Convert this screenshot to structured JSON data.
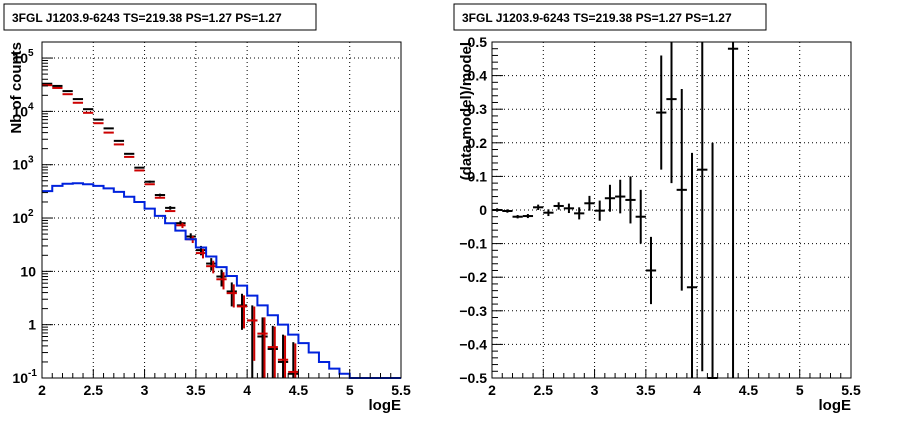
{
  "chart_data": [
    {
      "type": "step-errorbar",
      "title": "3FGL J1203.9-6243 TS=219.38 PS=1.27 PS=1.27",
      "xlabel": "logE",
      "ylabel": "Nb of counts",
      "xlim": [
        2,
        5.5
      ],
      "ylim": [
        0.1,
        200000
      ],
      "yscale": "log",
      "grid": true,
      "x_ticks": [
        "2",
        "2.5",
        "3",
        "3.5",
        "4",
        "4.5",
        "5",
        "5.5"
      ],
      "y_ticks": [
        {
          "value": 0.1,
          "label": "10",
          "exp": "-1"
        },
        {
          "value": 1,
          "label": "1",
          "exp": ""
        },
        {
          "value": 10,
          "label": "10",
          "exp": ""
        },
        {
          "value": 100,
          "label": "10",
          "exp": "2"
        },
        {
          "value": 1000,
          "label": "10",
          "exp": "3"
        },
        {
          "value": 10000,
          "label": "10",
          "exp": "4"
        },
        {
          "value": 100000,
          "label": "10",
          "exp": "5"
        }
      ],
      "bin_width": 0.1,
      "bin_centers": [
        2.05,
        2.15,
        2.25,
        2.35,
        2.45,
        2.55,
        2.65,
        2.75,
        2.85,
        2.95,
        3.05,
        3.15,
        3.25,
        3.35,
        3.45,
        3.55,
        3.65,
        3.75,
        3.85,
        3.95,
        4.05,
        4.15,
        4.25,
        4.35,
        4.45,
        4.55,
        4.65,
        4.75,
        4.85,
        4.95,
        5.05,
        5.15,
        5.25,
        5.35,
        5.45
      ],
      "series": [
        {
          "role": "data",
          "color": "#000000",
          "values": [
            33000,
            30000,
            24000,
            17000,
            11000,
            7000,
            4800,
            2800,
            1600,
            880,
            480,
            270,
            155,
            80,
            45,
            25,
            14,
            8,
            4.2,
            2.3,
            1.2,
            0.6,
            0.35,
            0.2,
            0.12
          ],
          "errors": [
            180,
            170,
            150,
            130,
            105,
            85,
            70,
            53,
            40,
            30,
            22,
            16,
            12,
            9,
            6.7,
            5,
            3.7,
            2.8,
            2.0,
            1.5,
            1.1,
            0.77,
            0.6,
            0.45,
            0.35
          ]
        },
        {
          "role": "model",
          "color": "#cc0000",
          "values": [
            31000,
            27500,
            21000,
            14500,
            9400,
            6000,
            4000,
            2400,
            1400,
            780,
            430,
            240,
            135,
            73,
            40,
            22,
            12.5,
            7.1,
            3.9,
            2.2,
            1.2,
            0.68,
            0.38,
            0.22,
            0.13
          ]
        },
        {
          "role": "source",
          "color": "#0022dd",
          "values": [
            320,
            400,
            440,
            450,
            430,
            400,
            360,
            310,
            250,
            200,
            150,
            110,
            80,
            58,
            40,
            28,
            19,
            12,
            8.2,
            5.4,
            3.5,
            2.3,
            1.5,
            1.0,
            0.65,
            0.45,
            0.3,
            0.2,
            0.15,
            0.12,
            0.1,
            0.1,
            0.1,
            0.1,
            0.1
          ]
        }
      ]
    },
    {
      "type": "errorbar",
      "title": "3FGL J1203.9-6243 TS=219.38 PS=1.27 PS=1.27",
      "xlabel": "logE",
      "ylabel": "(data-model)/model",
      "xlim": [
        2,
        5.5
      ],
      "ylim": [
        -0.5,
        0.5
      ],
      "grid": true,
      "x_ticks": [
        "2",
        "2.5",
        "3",
        "3.5",
        "4",
        "4.5",
        "5",
        "5.5"
      ],
      "y_ticks": [
        "−0.5",
        "−0.4",
        "−0.3",
        "−0.2",
        "−0.1",
        "0",
        "0.1",
        "0.2",
        "0.3",
        "0.4",
        "0.5"
      ],
      "bin_width": 0.1,
      "points": [
        {
          "x": 2.05,
          "y": 0.0,
          "err": 0.005
        },
        {
          "x": 2.15,
          "y": -0.003,
          "err": 0.005
        },
        {
          "x": 2.25,
          "y": -0.02,
          "err": 0.005
        },
        {
          "x": 2.35,
          "y": -0.018,
          "err": 0.006
        },
        {
          "x": 2.45,
          "y": 0.008,
          "err": 0.008
        },
        {
          "x": 2.55,
          "y": -0.008,
          "err": 0.01
        },
        {
          "x": 2.65,
          "y": 0.012,
          "err": 0.011
        },
        {
          "x": 2.75,
          "y": 0.005,
          "err": 0.014
        },
        {
          "x": 2.85,
          "y": -0.01,
          "err": 0.018
        },
        {
          "x": 2.95,
          "y": 0.02,
          "err": 0.022
        },
        {
          "x": 3.05,
          "y": -0.002,
          "err": 0.03
        },
        {
          "x": 3.15,
          "y": 0.035,
          "err": 0.04
        },
        {
          "x": 3.25,
          "y": 0.04,
          "err": 0.05
        },
        {
          "x": 3.35,
          "y": 0.03,
          "err": 0.07
        },
        {
          "x": 3.45,
          "y": -0.02,
          "err": 0.08
        },
        {
          "x": 3.55,
          "y": -0.18,
          "err": 0.1
        },
        {
          "x": 3.65,
          "y": 0.29,
          "err": 0.17
        },
        {
          "x": 3.75,
          "y": 0.33,
          "err": 0.25
        },
        {
          "x": 3.85,
          "y": 0.06,
          "err": 0.3
        },
        {
          "x": 3.95,
          "y": -0.23,
          "err": 0.4
        },
        {
          "x": 4.05,
          "y": 0.12,
          "err": 0.6
        },
        {
          "x": 4.15,
          "y": -0.5,
          "err": 0.7
        },
        {
          "x": 4.35,
          "y": 0.48,
          "err": 1.0
        }
      ]
    }
  ]
}
